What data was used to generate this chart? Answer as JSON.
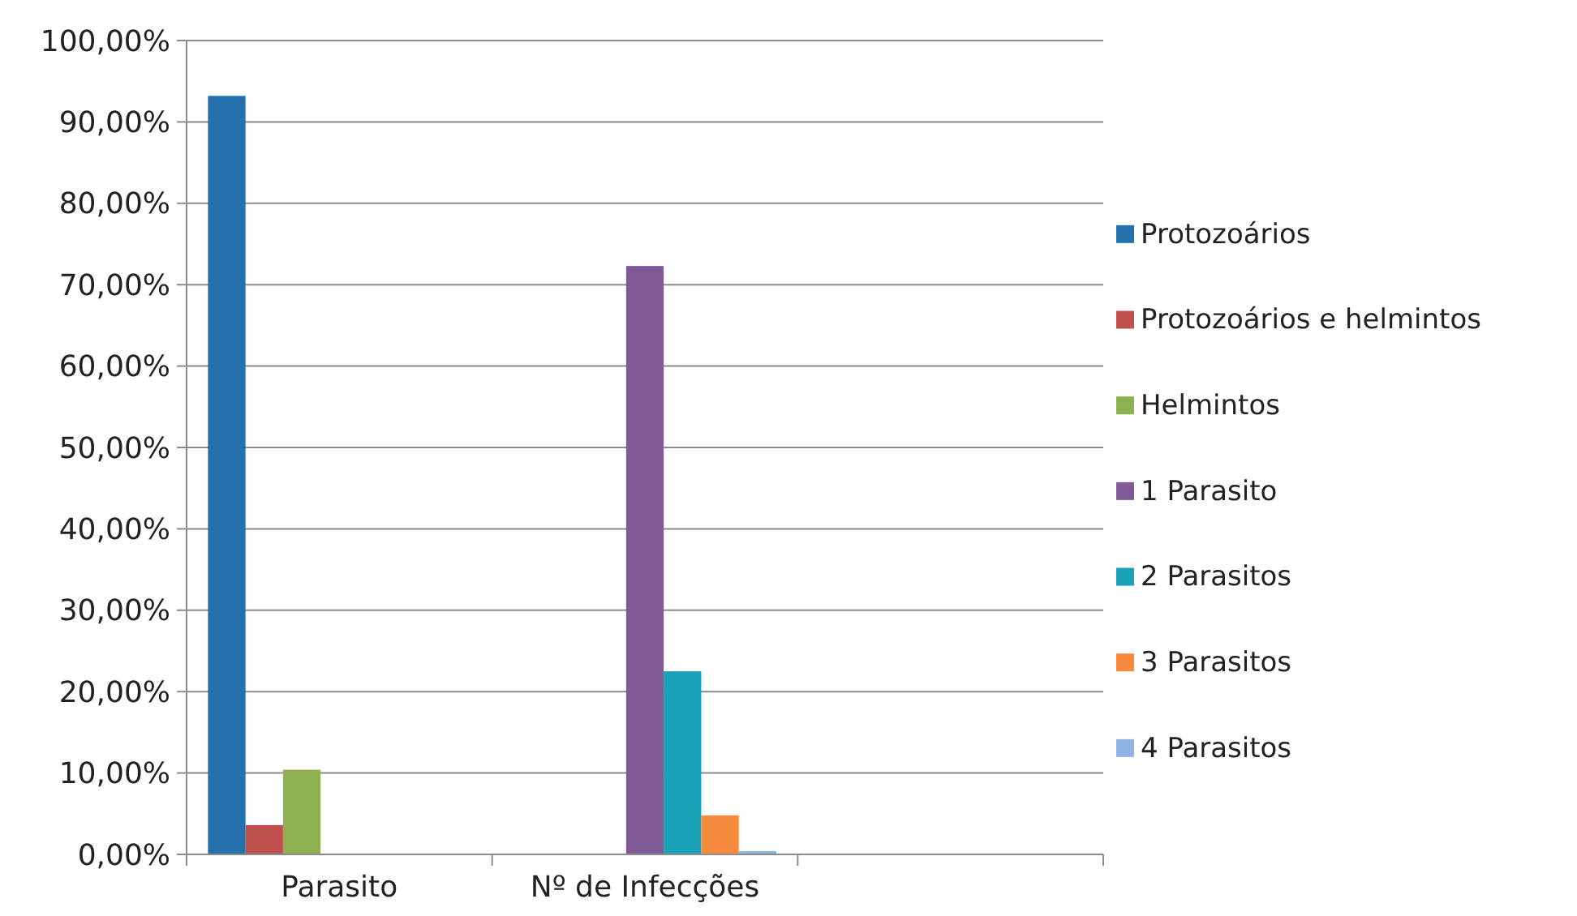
{
  "chart_data": {
    "type": "bar",
    "categories": [
      "Parasito",
      "Nº de Infecções",
      null
    ],
    "series": [
      {
        "name": "Protozoários",
        "color": "#2471ae",
        "values": [
          93.2,
          null,
          null
        ]
      },
      {
        "name": "Protozoários e helmintos",
        "color": "#c0504d",
        "values": [
          3.6,
          null,
          null
        ]
      },
      {
        "name": "Helmintos",
        "color": "#8db050",
        "values": [
          10.4,
          null,
          null
        ]
      },
      {
        "name": "1 Parasito",
        "color": "#7f5a96",
        "values": [
          null,
          72.3,
          null
        ]
      },
      {
        "name": "2 Parasitos",
        "color": "#1aa3b8",
        "values": [
          null,
          22.5,
          null
        ]
      },
      {
        "name": "3 Parasitos",
        "color": "#f58a3c",
        "values": [
          null,
          4.8,
          null
        ]
      },
      {
        "name": "4 Parasitos",
        "color": "#8eb4e3",
        "values": [
          null,
          0.4,
          null
        ]
      }
    ],
    "ylim": [
      0,
      100
    ],
    "yticks": [
      {
        "value": 0,
        "label": "0,00%"
      },
      {
        "value": 10,
        "label": "10,00%"
      },
      {
        "value": 20,
        "label": "20,00%"
      },
      {
        "value": 30,
        "label": "30,00%"
      },
      {
        "value": 40,
        "label": "40,00%"
      },
      {
        "value": 50,
        "label": "50,00%"
      },
      {
        "value": 60,
        "label": "60,00%"
      },
      {
        "value": 70,
        "label": "70,00%"
      },
      {
        "value": 80,
        "label": "80,00%"
      },
      {
        "value": 90,
        "label": "90,00%"
      },
      {
        "value": 100,
        "label": "100,00%"
      }
    ],
    "grid": "y",
    "legend": "right"
  }
}
